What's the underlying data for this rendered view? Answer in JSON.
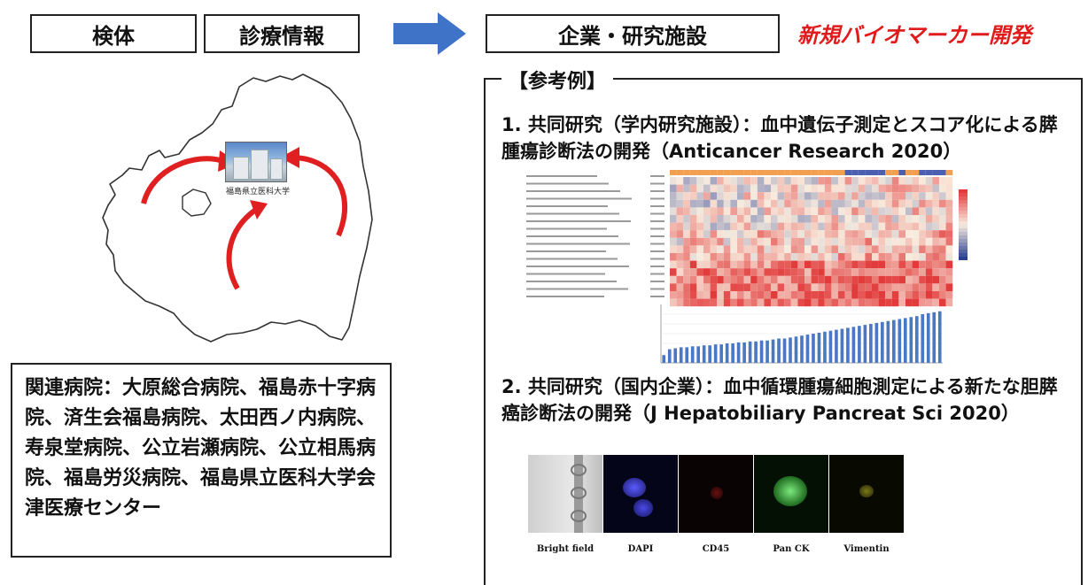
{
  "header": {
    "box1": "検体",
    "box2": "診療情報",
    "box3": "企業・研究施設",
    "tagline": "新規バイオマーカー開発"
  },
  "map": {
    "hospital_label": "福島県立医科大学"
  },
  "hospitals": {
    "text": "関連病院：大原総合病院、福島赤十字病院、済生会福島病院、太田西ノ内病院、寿泉堂病院、公立岩瀬病院、公立相馬病院、福島労災病院、福島県立医科大学会津医療センター"
  },
  "references": {
    "title": "【参考例】",
    "item1": "1. 共同研究（学内研究施設）：血中遺伝子測定とスコア化による膵腫瘍診断法の開発（Anticancer Research 2020）",
    "item2": "2. 共同研究（国内企業）：血中循環腫瘍細胞測定による新たな胆膵癌診断法の開発（J Hepatobiliary Pancreat Sci 2020）"
  },
  "cell_images": [
    {
      "label": "Bright field"
    },
    {
      "label": "DAPI"
    },
    {
      "label": "CD45"
    },
    {
      "label": "Pan CK"
    },
    {
      "label": "Vimentin"
    }
  ],
  "colors": {
    "accent_red": "#e01b1b",
    "arrow_blue": "#3f73c8",
    "bar_blue": "#4a78c4",
    "heat_high": "#e23b3b",
    "heat_low": "#2a3f95"
  },
  "chart_data": {
    "type": "bar",
    "values": [
      0.8,
      1.4,
      1.5,
      1.6,
      1.6,
      1.7,
      1.7,
      1.8,
      1.8,
      1.9,
      1.9,
      2.0,
      2.0,
      2.1,
      2.1,
      2.2,
      2.2,
      2.3,
      2.3,
      2.4,
      2.5,
      2.5,
      2.6,
      2.7,
      2.8,
      2.9,
      3.0,
      3.1,
      3.2,
      3.3,
      3.4,
      3.5,
      3.6,
      3.7,
      3.8,
      3.9,
      4.0,
      4.1,
      4.2,
      4.3,
      4.4,
      4.5,
      4.6,
      4.7,
      4.8,
      5.0,
      5.1,
      5.2,
      5.3
    ],
    "ylim": [
      0,
      6
    ]
  }
}
